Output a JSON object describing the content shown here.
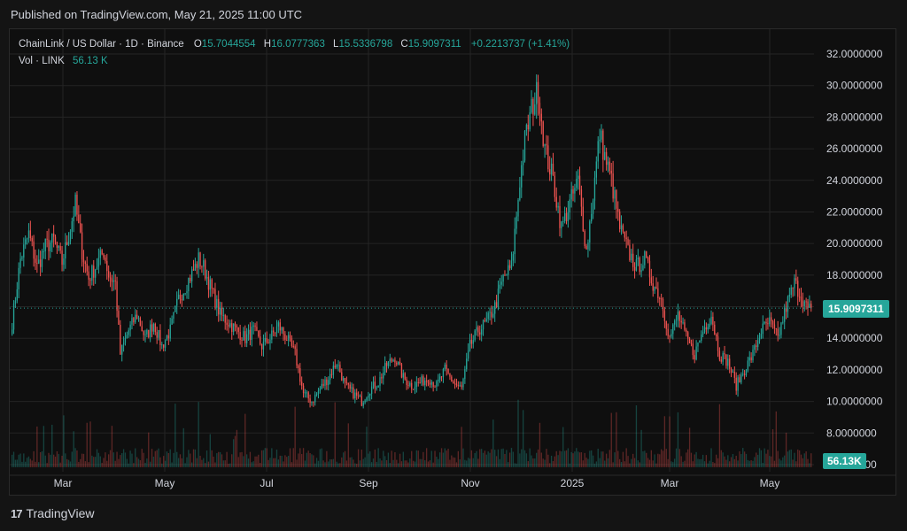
{
  "header": {
    "published": "Published on TradingView.com, May 21, 2025 11:00 UTC"
  },
  "legend": {
    "symbol": "ChainLink / US Dollar · 1D · Binance",
    "o_label": "O",
    "o": "15.7044554",
    "h_label": "H",
    "h": "16.0777363",
    "l_label": "L",
    "l": "15.5336798",
    "c_label": "C",
    "c": "15.9097311",
    "change": "+0.2213737 (+1.41%)",
    "vol_label": "Vol · LINK",
    "vol": "56.13 K"
  },
  "price_tag": "15.9097311",
  "volume_tag": "56.13K",
  "footer": {
    "brand": "TradingView"
  },
  "colors": {
    "up": "#26a69a",
    "down": "#ef5350",
    "grid": "#242424",
    "text": "#d1d4dc"
  },
  "chart_data": {
    "type": "candlestick",
    "y_ticks": [
      "32.0000000",
      "30.0000000",
      "28.0000000",
      "26.0000000",
      "24.0000000",
      "22.0000000",
      "20.0000000",
      "18.0000000",
      "16.0000000",
      "14.0000000",
      "12.0000000",
      "10.0000000",
      "8.0000000",
      "6.0000000"
    ],
    "ylim": [
      6,
      32
    ],
    "x_ticks": [
      "Mar",
      "May",
      "Jul",
      "Sep",
      "Nov",
      "2025",
      "Mar",
      "May"
    ],
    "last_price": 15.9097311,
    "anchors": [
      [
        0,
        15.0
      ],
      [
        5,
        19.0
      ],
      [
        10,
        20.6
      ],
      [
        15,
        18.5
      ],
      [
        20,
        19.8
      ],
      [
        25,
        20.2
      ],
      [
        30,
        18.8
      ],
      [
        35,
        21.0
      ],
      [
        38,
        22.5
      ],
      [
        42,
        19.5
      ],
      [
        46,
        17.8
      ],
      [
        50,
        18.5
      ],
      [
        55,
        19.5
      ],
      [
        58,
        18.0
      ],
      [
        62,
        17.5
      ],
      [
        65,
        13.0
      ],
      [
        70,
        14.5
      ],
      [
        75,
        15.5
      ],
      [
        80,
        14.0
      ],
      [
        85,
        15.0
      ],
      [
        90,
        13.5
      ],
      [
        95,
        14.5
      ],
      [
        100,
        16.5
      ],
      [
        105,
        17.5
      ],
      [
        110,
        18.5
      ],
      [
        112,
        19.0
      ],
      [
        115,
        18.5
      ],
      [
        120,
        17.0
      ],
      [
        125,
        15.5
      ],
      [
        130,
        15.0
      ],
      [
        135,
        14.5
      ],
      [
        140,
        14.0
      ],
      [
        145,
        14.5
      ],
      [
        150,
        13.5
      ],
      [
        155,
        14.0
      ],
      [
        160,
        14.8
      ],
      [
        165,
        14.0
      ],
      [
        170,
        13.0
      ],
      [
        175,
        10.5
      ],
      [
        180,
        10.0
      ],
      [
        185,
        10.8
      ],
      [
        190,
        11.5
      ],
      [
        195,
        12.5
      ],
      [
        200,
        11.0
      ],
      [
        205,
        10.5
      ],
      [
        210,
        10.0
      ],
      [
        215,
        10.8
      ],
      [
        220,
        11.2
      ],
      [
        225,
        12.3
      ],
      [
        230,
        12.8
      ],
      [
        235,
        11.5
      ],
      [
        240,
        11.0
      ],
      [
        245,
        11.2
      ],
      [
        250,
        11.5
      ],
      [
        255,
        11.0
      ],
      [
        260,
        12.0
      ],
      [
        265,
        11.2
      ],
      [
        270,
        10.8
      ],
      [
        275,
        13.5
      ],
      [
        280,
        14.5
      ],
      [
        285,
        15.0
      ],
      [
        290,
        16.0
      ],
      [
        295,
        17.8
      ],
      [
        300,
        18.5
      ],
      [
        305,
        24.0
      ],
      [
        308,
        26.5
      ],
      [
        312,
        28.5
      ],
      [
        316,
        29.8
      ],
      [
        320,
        26.0
      ],
      [
        325,
        24.0
      ],
      [
        330,
        21.0
      ],
      [
        335,
        22.5
      ],
      [
        340,
        24.0
      ],
      [
        345,
        19.5
      ],
      [
        350,
        24.0
      ],
      [
        353,
        27.0
      ],
      [
        356,
        25.5
      ],
      [
        360,
        24.0
      ],
      [
        365,
        21.0
      ],
      [
        370,
        19.5
      ],
      [
        375,
        18.5
      ],
      [
        380,
        19.0
      ],
      [
        385,
        17.5
      ],
      [
        390,
        16.5
      ],
      [
        395,
        14.0
      ],
      [
        400,
        15.5
      ],
      [
        405,
        14.0
      ],
      [
        410,
        13.0
      ],
      [
        415,
        14.5
      ],
      [
        420,
        15.5
      ],
      [
        425,
        13.0
      ],
      [
        430,
        12.5
      ],
      [
        435,
        11.0
      ],
      [
        440,
        12.0
      ],
      [
        445,
        13.0
      ],
      [
        450,
        14.5
      ],
      [
        455,
        15.0
      ],
      [
        460,
        14.0
      ],
      [
        465,
        16.0
      ],
      [
        470,
        17.5
      ],
      [
        475,
        16.5
      ],
      [
        478,
        15.8
      ],
      [
        480,
        15.9
      ]
    ],
    "volume_max_label": "56.13K"
  }
}
